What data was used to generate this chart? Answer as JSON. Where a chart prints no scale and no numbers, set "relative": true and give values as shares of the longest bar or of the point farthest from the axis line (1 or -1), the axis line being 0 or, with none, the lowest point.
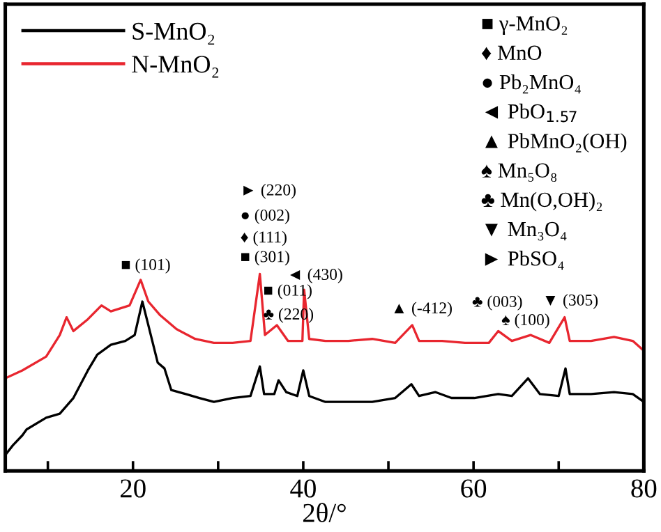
{
  "chart_data": {
    "type": "line",
    "relative": true,
    "xlabel": "2θ/°",
    "xlim": [
      5,
      80
    ],
    "xticks": [
      {
        "value": 10,
        "label": null
      },
      20,
      {
        "value": 30,
        "label": null
      },
      40,
      {
        "value": 50,
        "label": null
      },
      60,
      {
        "value": 70,
        "label": null
      },
      80
    ],
    "legend": "top left",
    "grid": false,
    "series": [
      {
        "name": "S-MnO₂",
        "color": "#000000",
        "x": [
          5,
          5.9,
          7.0,
          7.5,
          9.8,
          11.4,
          13.0,
          14.7,
          15.8,
          17.4,
          19.1,
          20.2,
          21.1,
          21.8,
          22.9,
          23.7,
          24.5,
          26.2,
          27.8,
          29.5,
          31.7,
          33.8,
          34.9,
          35.4,
          36.6,
          37.1,
          38.0,
          39.3,
          40.0,
          40.7,
          42.6,
          45.3,
          48.1,
          50.8,
          52.7,
          53.6,
          55.5,
          57.4,
          60.1,
          62.9,
          64.5,
          66.4,
          67.8,
          70.0,
          70.8,
          71.3,
          73.8,
          76.5,
          78.7,
          80
        ],
        "values": [
          0.08,
          0.13,
          0.18,
          0.21,
          0.27,
          0.29,
          0.37,
          0.51,
          0.59,
          0.64,
          0.66,
          0.69,
          0.86,
          0.74,
          0.55,
          0.52,
          0.41,
          0.39,
          0.37,
          0.35,
          0.37,
          0.38,
          0.53,
          0.39,
          0.39,
          0.46,
          0.4,
          0.38,
          0.51,
          0.38,
          0.35,
          0.35,
          0.35,
          0.37,
          0.44,
          0.38,
          0.4,
          0.37,
          0.37,
          0.39,
          0.38,
          0.47,
          0.39,
          0.38,
          0.52,
          0.39,
          0.39,
          0.4,
          0.39,
          0.35
        ]
      },
      {
        "name": "N-MnO₂",
        "color": "#e8262f",
        "x": [
          5,
          7.0,
          9.8,
          11.4,
          12.2,
          13.0,
          14.7,
          16.3,
          17.4,
          19.6,
          20.9,
          21.8,
          23.2,
          25.1,
          27.3,
          29.5,
          31.7,
          33.8,
          34.9,
          35.5,
          36.9,
          38.2,
          39.9,
          40.1,
          40.7,
          42.6,
          45.3,
          48.1,
          50.8,
          52.8,
          53.6,
          56.3,
          59.0,
          61.8,
          62.9,
          64.5,
          66.7,
          68.9,
          70.7,
          71.3,
          73.8,
          76.5,
          78.7,
          80
        ],
        "values": [
          0.47,
          0.51,
          0.58,
          0.69,
          0.78,
          0.71,
          0.77,
          0.84,
          0.81,
          0.84,
          0.97,
          0.86,
          0.79,
          0.72,
          0.67,
          0.65,
          0.65,
          0.66,
          1.0,
          0.69,
          0.74,
          0.66,
          0.66,
          0.92,
          0.67,
          0.66,
          0.66,
          0.67,
          0.65,
          0.74,
          0.66,
          0.66,
          0.65,
          0.65,
          0.71,
          0.66,
          0.69,
          0.65,
          0.78,
          0.66,
          0.66,
          0.68,
          0.66,
          0.61
        ]
      }
    ],
    "annotations": [
      "■ (101)",
      "► (220)",
      "● (002)",
      "♦ (111)",
      "■ (301)",
      "◄ (430)",
      "■ (011)",
      "♣ (220)",
      "▲ (-412)",
      "♣ (003)",
      "♠ (100)",
      "▼ (305)",
      "■ γ-MnO₂",
      "♦ MnO",
      "● Pb₂MnO₄",
      "◄ PbO$_{1.57}$",
      "▲ PbMnO₂(OH)",
      "♠ Mn₅O₈",
      "♣ Mn(O,OH)₂",
      "▼ Mn₃O₄",
      "► PbSO₄"
    ]
  }
}
